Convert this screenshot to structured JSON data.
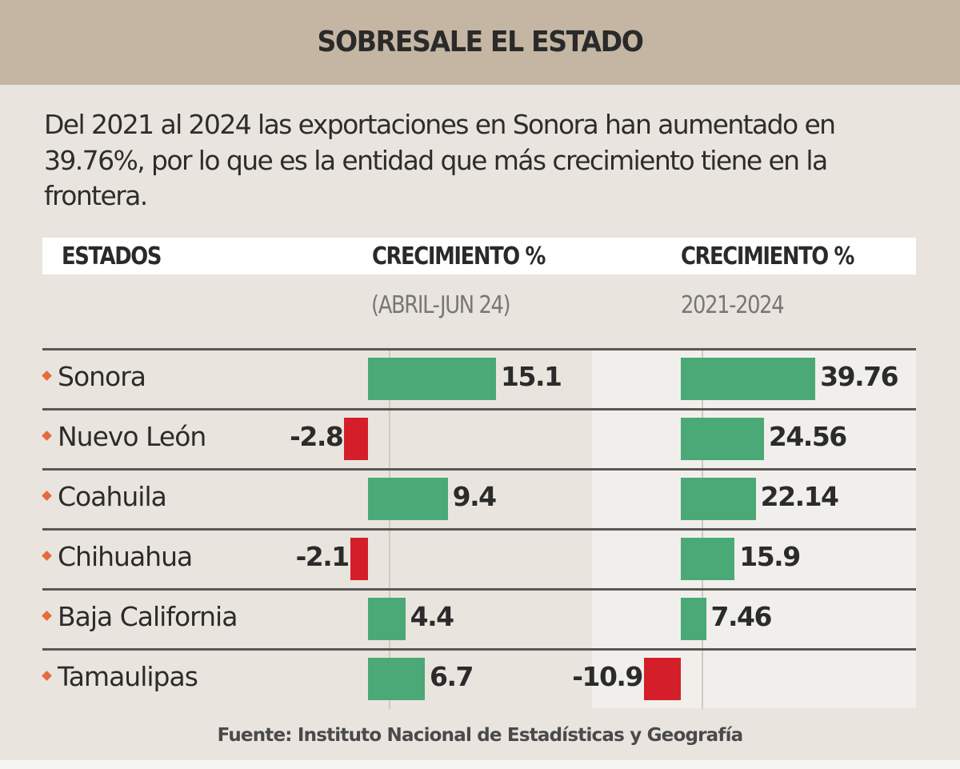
{
  "header": {
    "title": "SOBRESALE EL ESTADO"
  },
  "intro": "Del 2021 al 2024 las exportaciones en Sonora han aumentado en 39.76%, por lo que es la entidad que más crecimiento tiene en la frontera.",
  "columns": {
    "states": "ESTADOS",
    "col1_title": "CRECIMIENTO %",
    "col1_period": "(ABRIL-JUN 24)",
    "col2_title": "CRECIMIENTO %",
    "col2_period": "2021-2024"
  },
  "colors": {
    "header_band": "#c4b6a2",
    "background": "#e9e5de",
    "positive": "#4aa976",
    "negative": "#d41f2a",
    "bullet": "#e46c3a"
  },
  "footer": "Fuente: Instituto Nacional de Estadísticas y Geografía",
  "chart_data": {
    "type": "bar",
    "orientation": "horizontal",
    "title": "SOBRESALE EL ESTADO",
    "categories": [
      "Sonora",
      "Nuevo León",
      "Coahuila",
      "Chihuahua",
      "Baja California",
      "Tamaulipas"
    ],
    "series": [
      {
        "name": "CRECIMIENTO % (ABRIL-JUN 24)",
        "values": [
          15.1,
          -2.8,
          9.4,
          -2.1,
          4.4,
          6.7
        ],
        "labels": [
          "15.1",
          "-2.8",
          "9.4",
          "-2.1",
          "4.4",
          "6.7"
        ]
      },
      {
        "name": "CRECIMIENTO % 2021-2024",
        "values": [
          39.76,
          24.56,
          22.14,
          15.9,
          7.46,
          -10.9
        ],
        "labels": [
          "39.76",
          "24.56",
          "22.14",
          "15.9",
          "7.46",
          "-10.9"
        ]
      }
    ],
    "xlabel": "",
    "ylabel": "",
    "grid": false,
    "legend": "none",
    "source": "Fuente: Instituto Nacional de Estadísticas y Geografía"
  }
}
